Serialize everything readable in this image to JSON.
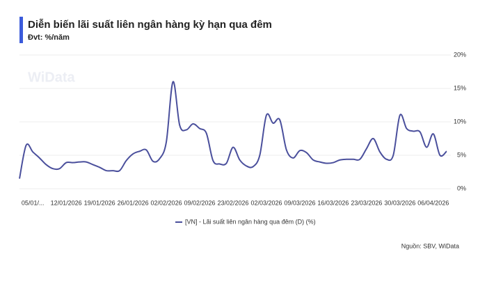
{
  "chart_data": {
    "type": "line",
    "title": "Diễn biến lãi suất liên ngân hàng kỳ hạn qua đêm",
    "subtitle": "Đvt: %/năm",
    "watermark": "WiData",
    "source": "Nguồn: SBV, WiData",
    "categories": [
      null,
      null,
      "05/01/...",
      null,
      null,
      null,
      null,
      "12/01/2026",
      null,
      null,
      null,
      null,
      "19/01/2026",
      null,
      null,
      null,
      null,
      "26/01/2026",
      null,
      null,
      null,
      null,
      "02/02/2026",
      null,
      null,
      null,
      null,
      "09/02/2026",
      null,
      null,
      null,
      null,
      "23/02/2026",
      null,
      null,
      null,
      null,
      "02/03/2026",
      null,
      null,
      null,
      null,
      "09/03/2026",
      null,
      null,
      null,
      null,
      "16/03/2026",
      null,
      null,
      null,
      null,
      "23/03/2026",
      null,
      null,
      null,
      null,
      "30/03/2026",
      null,
      null,
      null,
      null,
      "06/04/2026",
      null,
      null
    ],
    "series": [
      {
        "name": "[VN] - Lãi suất liên ngân hàng qua đêm (D) (%)",
        "color": "#4a4f9c",
        "values": [
          1.5,
          6.5,
          5.5,
          4.6,
          3.6,
          3.0,
          3.0,
          3.9,
          3.9,
          4.0,
          4.0,
          3.6,
          3.2,
          2.7,
          2.7,
          2.7,
          4.2,
          5.2,
          5.6,
          5.8,
          4.1,
          4.5,
          7.0,
          16.0,
          9.5,
          8.8,
          9.7,
          9.0,
          8.3,
          4.2,
          3.7,
          3.8,
          6.2,
          4.3,
          3.4,
          3.3,
          5.0,
          11.0,
          9.8,
          10.3,
          5.8,
          4.6,
          5.7,
          5.4,
          4.3,
          4.0,
          3.8,
          3.9,
          4.3,
          4.4,
          4.4,
          4.4,
          6.0,
          7.5,
          5.5,
          4.4,
          5.0,
          11.0,
          9.0,
          8.6,
          8.5,
          6.2,
          8.2,
          5.0,
          5.6
        ]
      }
    ],
    "ylim": [
      0,
      20
    ],
    "yticks": [
      {
        "value": 0,
        "label": "0%"
      },
      {
        "value": 5,
        "label": "5%"
      },
      {
        "value": 10,
        "label": "10%"
      },
      {
        "value": 15,
        "label": "15%"
      },
      {
        "value": 20,
        "label": "20%"
      }
    ],
    "grid": true
  }
}
